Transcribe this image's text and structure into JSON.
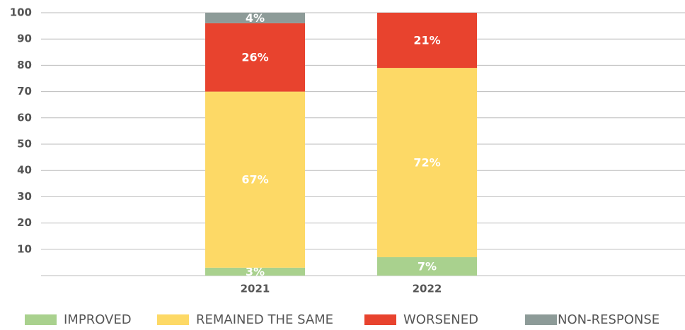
{
  "chart_data": {
    "type": "stacked_bar",
    "categories": [
      "2021",
      "2022"
    ],
    "series": [
      {
        "name": "IMPROVED",
        "color": "#a9d18e",
        "values": [
          3,
          7
        ],
        "value_labels": [
          "3%",
          "7%"
        ]
      },
      {
        "name": "REMAINED THE SAME",
        "color": "#fdd966",
        "values": [
          67,
          72
        ],
        "value_labels": [
          "67%",
          "72%"
        ]
      },
      {
        "name": "WORSENED",
        "color": "#e8432e",
        "values": [
          26,
          21
        ],
        "value_labels": [
          "26%",
          "21%"
        ]
      },
      {
        "name": "NON-RESPONSE",
        "color": "#8d9b98",
        "values": [
          4,
          0
        ],
        "value_labels": [
          "4%",
          null
        ]
      }
    ],
    "ylim": [
      0,
      100
    ],
    "yticks": [
      10,
      20,
      30,
      40,
      50,
      60,
      70,
      80,
      90,
      100
    ],
    "grid": true,
    "legend": "bottom"
  }
}
